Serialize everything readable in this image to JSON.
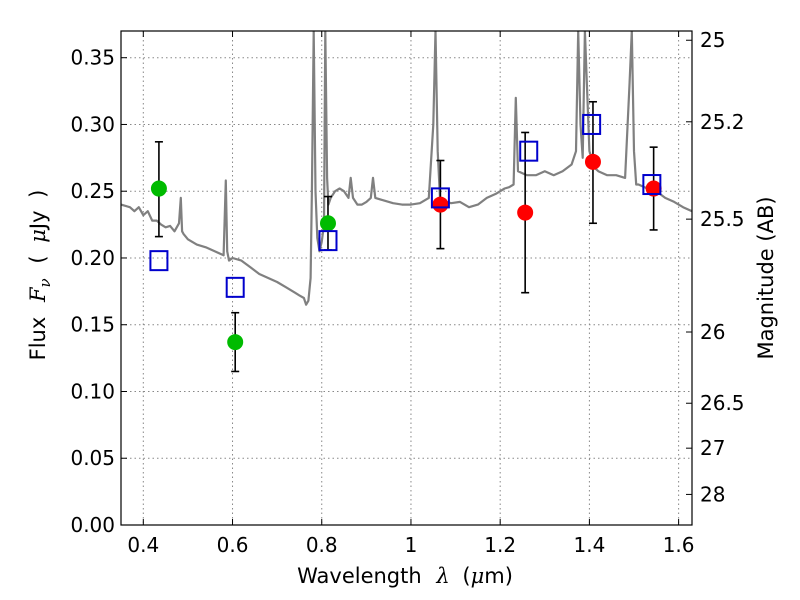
{
  "chart_data": {
    "type": "scatter",
    "xlabel_parts": [
      "Wavelength",
      "λ",
      "(",
      "μ",
      "m)"
    ],
    "ylabel_parts": [
      "Flux",
      "F",
      "ν",
      "(",
      "μ",
      "Jy",
      ")"
    ],
    "y2label": "Magnitude (AB)",
    "xlim": [
      0.35,
      1.63
    ],
    "ylim": [
      0.0,
      0.37
    ],
    "grid": true,
    "x_ticks": [
      {
        "v": 0.4,
        "label": "0.4"
      },
      {
        "v": 0.6,
        "label": "0.6"
      },
      {
        "v": 0.8,
        "label": "0.8"
      },
      {
        "v": 1.0,
        "label": "1"
      },
      {
        "v": 1.2,
        "label": "1.2"
      },
      {
        "v": 1.4,
        "label": "1.4"
      },
      {
        "v": 1.6,
        "label": "1.6"
      }
    ],
    "y_ticks": [
      {
        "v": 0.0,
        "label": "0.00"
      },
      {
        "v": 0.05,
        "label": "0.05"
      },
      {
        "v": 0.1,
        "label": "0.10"
      },
      {
        "v": 0.15,
        "label": "0.15"
      },
      {
        "v": 0.2,
        "label": "0.20"
      },
      {
        "v": 0.25,
        "label": "0.25"
      },
      {
        "v": 0.3,
        "label": "0.30"
      },
      {
        "v": 0.35,
        "label": "0.35"
      }
    ],
    "y2_ticks": [
      {
        "mag": 25,
        "label": "25"
      },
      {
        "mag": 25.2,
        "label": "25.2"
      },
      {
        "mag": 25.5,
        "label": "25.5"
      },
      {
        "mag": 26,
        "label": "26"
      },
      {
        "mag": 26.5,
        "label": "26.5"
      },
      {
        "mag": 27,
        "label": "27"
      },
      {
        "mag": 28,
        "label": "28"
      }
    ],
    "series": [
      {
        "marker": "circle",
        "color": "#00bb00",
        "points": [
          {
            "x": 0.435,
            "y": 0.252,
            "lo": 0.216,
            "hi": 0.287
          },
          {
            "x": 0.606,
            "y": 0.137,
            "lo": 0.115,
            "hi": 0.159
          },
          {
            "x": 0.814,
            "y": 0.226,
            "lo": 0.206,
            "hi": 0.246
          }
        ]
      },
      {
        "marker": "circle",
        "color": "#ff0000",
        "points": [
          {
            "x": 1.066,
            "y": 0.24,
            "lo": 0.207,
            "hi": 0.273
          },
          {
            "x": 1.256,
            "y": 0.234,
            "lo": 0.174,
            "hi": 0.294
          },
          {
            "x": 1.408,
            "y": 0.272,
            "lo": 0.226,
            "hi": 0.317
          },
          {
            "x": 1.544,
            "y": 0.252,
            "lo": 0.221,
            "hi": 0.283
          }
        ]
      },
      {
        "marker": "square",
        "color": "#0000cc",
        "points": [
          {
            "x": 0.435,
            "y": 0.198
          },
          {
            "x": 0.606,
            "y": 0.178
          },
          {
            "x": 0.814,
            "y": 0.213
          },
          {
            "x": 1.066,
            "y": 0.245
          },
          {
            "x": 1.264,
            "y": 0.28
          },
          {
            "x": 1.405,
            "y": 0.3
          },
          {
            "x": 1.54,
            "y": 0.255
          }
        ]
      }
    ],
    "spectrum": {
      "color": "#808080",
      "x": [
        0.35,
        0.37,
        0.38,
        0.39,
        0.4,
        0.41,
        0.42,
        0.43,
        0.44,
        0.45,
        0.46,
        0.47,
        0.48,
        0.484,
        0.487,
        0.49,
        0.5,
        0.52,
        0.54,
        0.56,
        0.58,
        0.585,
        0.588,
        0.592,
        0.6,
        0.62,
        0.64,
        0.66,
        0.68,
        0.7,
        0.72,
        0.74,
        0.75,
        0.76,
        0.765,
        0.77,
        0.775,
        0.778,
        0.782,
        0.786,
        0.79,
        0.795,
        0.8,
        0.805,
        0.808,
        0.812,
        0.815,
        0.82,
        0.83,
        0.84,
        0.85,
        0.86,
        0.865,
        0.87,
        0.88,
        0.89,
        0.9,
        0.91,
        0.915,
        0.92,
        0.94,
        0.96,
        0.98,
        1.0,
        1.02,
        1.04,
        1.05,
        1.055,
        1.06,
        1.065,
        1.07,
        1.09,
        1.11,
        1.13,
        1.15,
        1.17,
        1.19,
        1.21,
        1.22,
        1.23,
        1.235,
        1.24,
        1.26,
        1.28,
        1.3,
        1.32,
        1.34,
        1.36,
        1.37,
        1.375,
        1.38,
        1.385,
        1.39,
        1.4,
        1.405,
        1.41,
        1.42,
        1.44,
        1.46,
        1.48,
        1.49,
        1.495,
        1.5,
        1.505,
        1.51,
        1.53,
        1.55,
        1.57,
        1.59,
        1.61,
        1.63
      ],
      "y": [
        0.24,
        0.238,
        0.235,
        0.238,
        0.232,
        0.235,
        0.228,
        0.228,
        0.225,
        0.223,
        0.224,
        0.22,
        0.226,
        0.245,
        0.22,
        0.218,
        0.214,
        0.21,
        0.208,
        0.205,
        0.202,
        0.258,
        0.205,
        0.198,
        0.2,
        0.198,
        0.193,
        0.188,
        0.185,
        0.182,
        0.178,
        0.174,
        0.172,
        0.17,
        0.165,
        0.168,
        0.185,
        0.25,
        0.37,
        0.25,
        0.215,
        0.205,
        0.212,
        0.225,
        0.37,
        0.26,
        0.24,
        0.245,
        0.25,
        0.252,
        0.25,
        0.245,
        0.26,
        0.245,
        0.24,
        0.24,
        0.242,
        0.245,
        0.26,
        0.245,
        0.243,
        0.241,
        0.24,
        0.24,
        0.241,
        0.245,
        0.3,
        0.37,
        0.28,
        0.245,
        0.243,
        0.241,
        0.242,
        0.238,
        0.24,
        0.245,
        0.248,
        0.252,
        0.253,
        0.255,
        0.32,
        0.265,
        0.262,
        0.262,
        0.265,
        0.262,
        0.265,
        0.27,
        0.28,
        0.37,
        0.3,
        0.275,
        0.37,
        0.28,
        0.275,
        0.268,
        0.265,
        0.262,
        0.262,
        0.26,
        0.33,
        0.37,
        0.28,
        0.255,
        0.255,
        0.252,
        0.25,
        0.245,
        0.242,
        0.238,
        0.235
      ]
    }
  }
}
